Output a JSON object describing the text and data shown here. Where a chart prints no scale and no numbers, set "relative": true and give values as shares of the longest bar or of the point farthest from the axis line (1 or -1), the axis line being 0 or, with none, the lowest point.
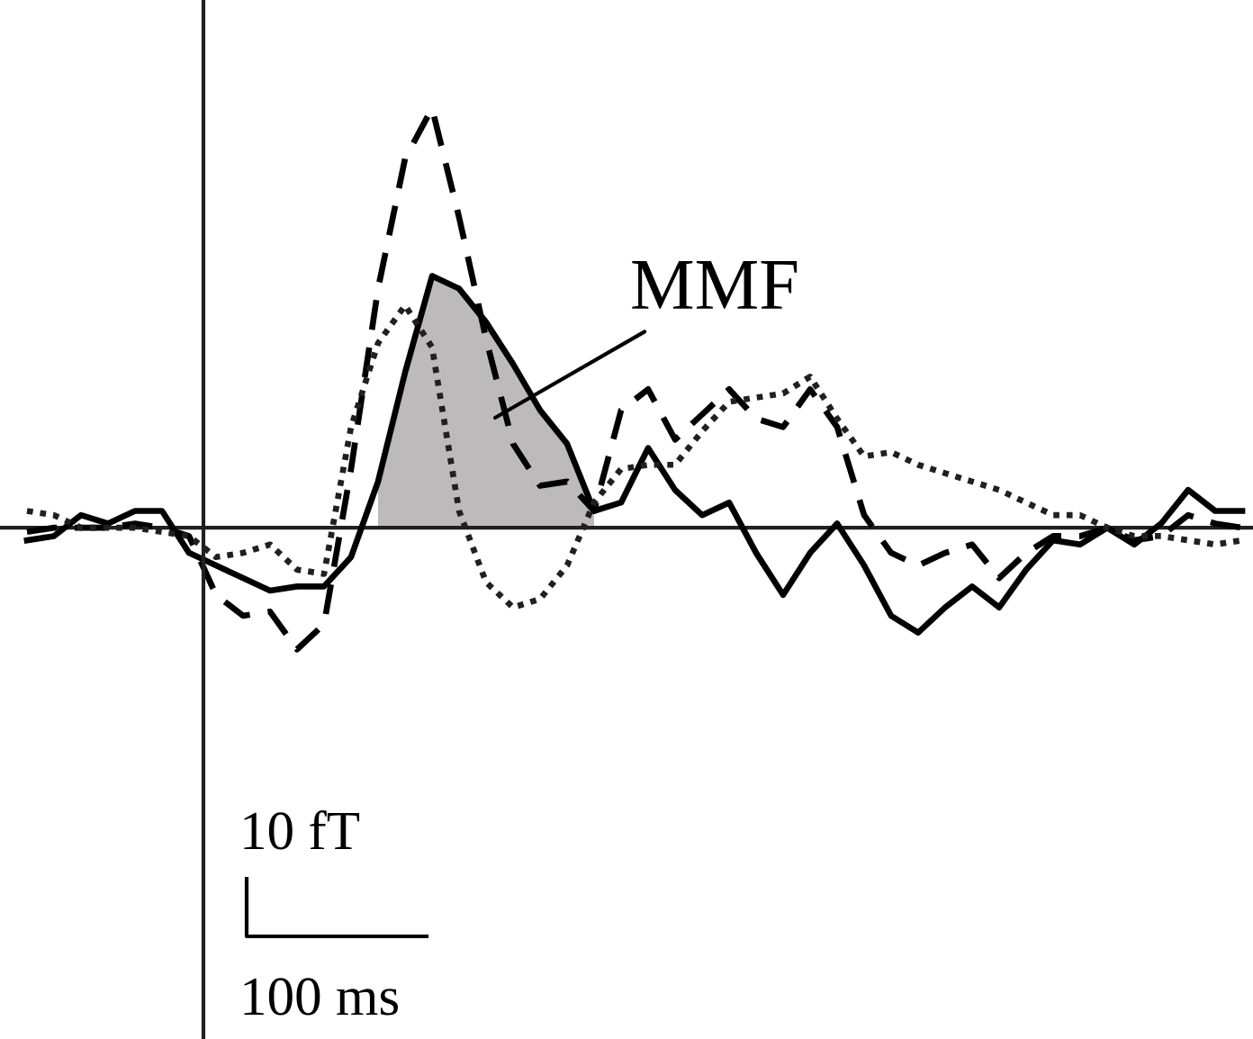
{
  "chart_data": {
    "type": "line",
    "relative": true,
    "categories": [
      null,
      null,
      null,
      null,
      null,
      null,
      null,
      null,
      null,
      null,
      null,
      null,
      null,
      null,
      null,
      null,
      null,
      null,
      null,
      null,
      null,
      null,
      null,
      null,
      null,
      null,
      null,
      null,
      null,
      null,
      null,
      null,
      null,
      null,
      null,
      null,
      null,
      null,
      null,
      null,
      null,
      null,
      null,
      null,
      null,
      null
    ],
    "series": [
      {
        "type": "area",
        "color": "#bdbabb",
        "values": [
          null,
          null,
          null,
          null,
          null,
          null,
          null,
          null,
          null,
          null,
          null,
          null,
          null,
          0.11,
          0.37,
          0.6,
          0.57,
          0.49,
          0.39,
          0.28,
          0.2,
          0.04,
          null,
          null,
          null,
          null,
          null,
          null,
          null,
          null,
          null,
          null,
          null,
          null,
          null,
          null,
          null,
          null,
          null,
          null,
          null,
          null,
          null,
          null,
          null,
          null
        ]
      },
      {
        "color": "#000000",
        "line_style": "solid",
        "values": [
          -0.03,
          -0.02,
          0.03,
          0.01,
          0.04,
          0.04,
          -0.06,
          -0.09,
          -0.12,
          -0.15,
          -0.14,
          -0.14,
          -0.07,
          0.11,
          0.37,
          0.6,
          0.57,
          0.49,
          0.39,
          0.28,
          0.2,
          0.04,
          0.06,
          0.19,
          0.09,
          0.03,
          0.06,
          -0.06,
          -0.16,
          -0.06,
          0.01,
          -0.09,
          -0.21,
          -0.25,
          -0.19,
          -0.14,
          -0.19,
          -0.1,
          -0.03,
          -0.04,
          0,
          -0.04,
          0.01,
          0.09,
          0.04,
          0.04
        ]
      },
      {
        "color": "#000000",
        "line_style": "dashed",
        "values": [
          -0.01,
          0,
          0,
          0,
          0.01,
          0,
          -0.02,
          -0.16,
          -0.21,
          -0.2,
          -0.29,
          -0.23,
          0.14,
          0.57,
          0.88,
          1,
          0.74,
          0.45,
          0.2,
          0.1,
          0.11,
          0.04,
          0.28,
          0.33,
          0.21,
          0.27,
          0.33,
          0.26,
          0.24,
          0.33,
          0.24,
          0.03,
          -0.06,
          -0.09,
          -0.06,
          -0.04,
          -0.12,
          -0.06,
          -0.02,
          -0.02,
          0,
          -0.03,
          -0.02,
          0.03,
          0.01,
          0
        ]
      },
      {
        "color": "#231f20",
        "line_style": "dotted",
        "values": [
          0.04,
          0.03,
          0,
          0,
          0,
          -0.01,
          -0.02,
          -0.07,
          -0.06,
          -0.04,
          -0.1,
          -0.11,
          0.24,
          0.44,
          0.53,
          0.43,
          0.04,
          -0.13,
          -0.19,
          -0.17,
          -0.09,
          0.06,
          0.14,
          0.15,
          0.15,
          0.23,
          0.3,
          0.31,
          0.32,
          0.36,
          0.26,
          0.17,
          0.18,
          0.15,
          0.13,
          0.11,
          0.09,
          0.06,
          0.03,
          0.03,
          0,
          -0.02,
          -0.02,
          -0.03,
          -0.04,
          -0.03
        ]
      }
    ],
    "annotations": [
      "MMF",
      "10 fT",
      "100 ms"
    ]
  }
}
